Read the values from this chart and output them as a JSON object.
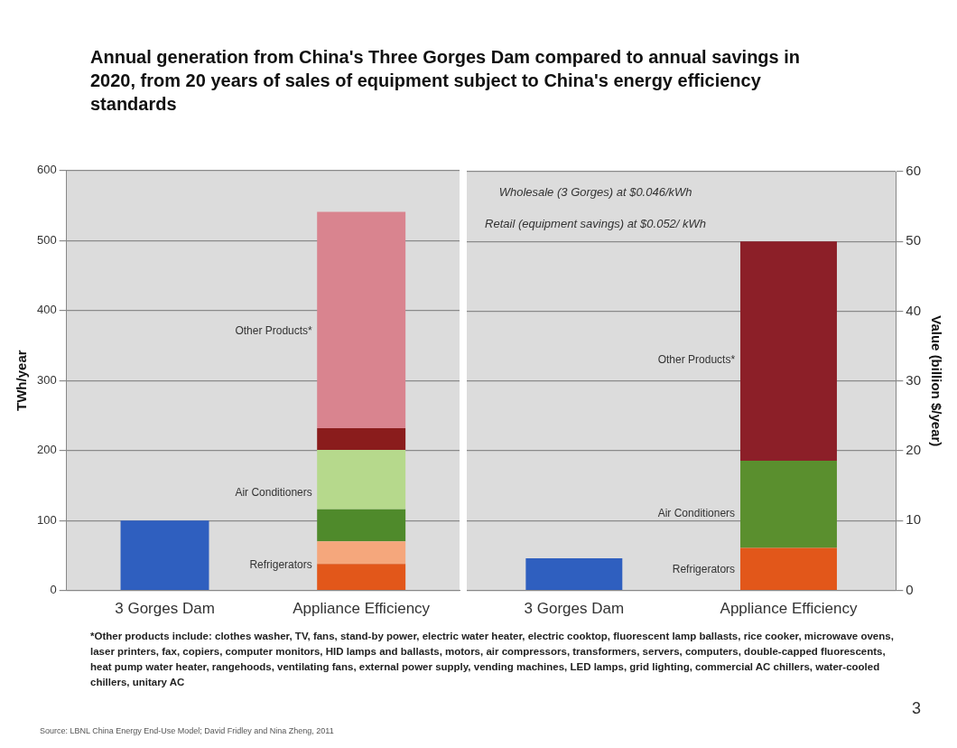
{
  "chart_data": [
    {
      "type": "bar",
      "title": "Annual generation from China's Three Gorges Dam compared to annual savings in 2020, from 20 years of sales of equipment subject to China's energy efficiency standards",
      "ylabel": "TWh/year",
      "categories": [
        "3 Gorges Dam",
        "Appliance Efficiency"
      ],
      "stacked": true,
      "grid": "y",
      "legend": false,
      "ylim": [
        0,
        600
      ],
      "yticks": [
        0,
        100,
        200,
        300,
        400,
        500,
        600
      ],
      "series": [
        {
          "color": "#2f5fbf",
          "values": [
            100,
            null
          ]
        },
        {
          "color": "#e2571a",
          "values": [
            null,
            38
          ]
        },
        {
          "color": "#f5a77c",
          "values": [
            null,
            32
          ]
        },
        {
          "color": "#4f8a2b",
          "values": [
            null,
            46
          ]
        },
        {
          "color": "#b6d98c",
          "values": [
            null,
            85
          ]
        },
        {
          "color": "#8a1c1c",
          "values": [
            null,
            31
          ]
        },
        {
          "color": "#d9848f",
          "values": [
            null,
            309
          ]
        }
      ],
      "annotations": [
        "Refrigerators",
        "Air Conditioners",
        "Other Products*",
        "*Other products include: clothes washer, TV, fans, stand-by power, electric water heater, electric cooktop, fluorescent lamp ballasts, rice cooker, microwave ovens, laser printers, fax, copiers, computer monitors, HID lamps and ballasts, motors, air compressors, transformers, servers, computers, double-capped fluorescents, heat pump water heater, rangehoods, ventilating fans, external power supply, vending machines, LED lamps, grid lighting, commercial AC chillers, water-cooled chillers, unitary AC",
        "Source: LBNL China Energy End-Use Model; David Fridley and Nina Zheng, 2011",
        "3"
      ]
    },
    {
      "type": "bar",
      "y2label": "Value (billion $/year)",
      "categories": [
        "3 Gorges Dam",
        "Appliance Efficiency"
      ],
      "stacked": true,
      "grid": "y",
      "legend": false,
      "y2lim": [
        0,
        60
      ],
      "y2ticks": [
        0,
        10,
        20,
        30,
        40,
        50,
        60
      ],
      "series": [
        {
          "color": "#2f5fbf",
          "axis": "y2",
          "values": [
            4.6,
            null
          ]
        },
        {
          "color": "#e2571a",
          "axis": "y2",
          "values": [
            null,
            6.1
          ]
        },
        {
          "color": "#5a8f2e",
          "axis": "y2",
          "values": [
            null,
            12.5
          ]
        },
        {
          "color": "#8c1f28",
          "axis": "y2",
          "values": [
            null,
            31.4
          ]
        }
      ],
      "annotations": [
        "Wholesale (3 Gorges) at $0.046/kWh",
        "Retail (equipment savings) at $0.052/ kWh",
        "Refrigerators",
        "Air Conditioners",
        "Other Products*"
      ]
    }
  ]
}
